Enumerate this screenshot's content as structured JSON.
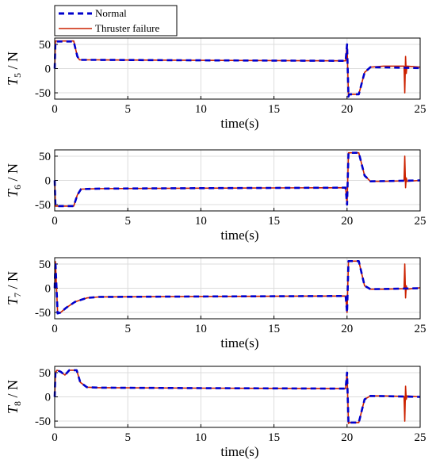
{
  "chart_data": {
    "type": "line",
    "legend": {
      "placement": "top-left",
      "entries": [
        {
          "name": "Normal",
          "color": "#0000CC",
          "style": "dashed"
        },
        {
          "name": "Thruster failure",
          "color": "#CC2200",
          "style": "solid"
        }
      ]
    },
    "grid": true,
    "charts": [
      {
        "ylabel_main": "T",
        "ylabel_sub": "5",
        "ylabel_unit": " / N",
        "xlabel": "time(s)",
        "xlim": [
          0,
          25
        ],
        "ylim": [
          -63,
          63
        ],
        "xticks": [
          "0",
          "5",
          "10",
          "15",
          "20",
          "25"
        ],
        "yticks": [
          "50",
          "0",
          "-50"
        ],
        "series": [
          {
            "name": "Normal",
            "x": [
              0,
              0.05,
              0.15,
              1.3,
              1.55,
              1.7,
              3,
              10,
              19.9,
              20.0,
              20.1,
              20.15,
              20.8,
              21.2,
              21.6,
              23.5,
              25
            ],
            "y": [
              0,
              56,
              56,
              56,
              25,
              18,
              18,
              17,
              16,
              50,
              -58,
              -53,
              -53,
              -8,
              3,
              2,
              1
            ]
          },
          {
            "name": "Thruster failure",
            "x": [
              0,
              0.05,
              0.15,
              1.3,
              1.55,
              1.7,
              3,
              10,
              19.9,
              20.0,
              20.1,
              20.15,
              20.8,
              21.2,
              21.6,
              22.5,
              23.9,
              23.95,
              24.0,
              24.05,
              24.1,
              25
            ],
            "y": [
              0,
              57,
              57,
              57,
              25,
              18,
              18,
              17,
              16,
              50,
              -58,
              -53,
              -53,
              -8,
              3,
              5,
              5,
              -50,
              25,
              -10,
              5,
              3
            ]
          }
        ]
      },
      {
        "ylabel_main": "T",
        "ylabel_sub": "6",
        "ylabel_unit": " / N",
        "xlabel": "time(s)",
        "xlim": [
          0,
          25
        ],
        "ylim": [
          -63,
          63
        ],
        "xticks": [
          "0",
          "5",
          "10",
          "15",
          "20",
          "25"
        ],
        "yticks": [
          "50",
          "0",
          "-50"
        ],
        "series": [
          {
            "name": "Normal",
            "x": [
              0,
              0.05,
              0.15,
              1.3,
              1.55,
              1.8,
              3,
              10,
              19.9,
              20.0,
              20.1,
              20.15,
              20.8,
              21.2,
              21.6,
              23.5,
              25
            ],
            "y": [
              0,
              -53,
              -53,
              -53,
              -30,
              -18,
              -17,
              -16,
              -15,
              -50,
              57,
              57,
              57,
              10,
              -2,
              -1,
              0
            ]
          },
          {
            "name": "Thruster failure",
            "x": [
              0,
              0.05,
              0.15,
              1.3,
              1.55,
              1.8,
              3,
              10,
              19.9,
              20.0,
              20.1,
              20.15,
              20.8,
              21.2,
              21.6,
              22.5,
              23.9,
              23.95,
              24.0,
              24.05,
              24.1,
              25
            ],
            "y": [
              0,
              -53,
              -53,
              -53,
              -30,
              -18,
              -17,
              -16,
              -15,
              -50,
              57,
              57,
              57,
              10,
              -2,
              -2,
              -1,
              50,
              -15,
              5,
              -2,
              0
            ]
          }
        ]
      },
      {
        "ylabel_main": "T",
        "ylabel_sub": "7",
        "ylabel_unit": " / N",
        "xlabel": "time(s)",
        "xlim": [
          0,
          25
        ],
        "ylim": [
          -63,
          63
        ],
        "xticks": [
          "0",
          "5",
          "10",
          "15",
          "20",
          "25"
        ],
        "yticks": [
          "50",
          "0",
          "-50"
        ],
        "series": [
          {
            "name": "Normal",
            "x": [
              0,
              0.05,
              0.2,
              0.4,
              0.8,
              1.4,
              2.2,
              3,
              10,
              19.9,
              20.0,
              20.1,
              20.15,
              20.8,
              21.2,
              21.6,
              23.5,
              25
            ],
            "y": [
              0,
              55,
              -52,
              -50,
              -40,
              -28,
              -20,
              -18,
              -17,
              -16,
              -50,
              56,
              56,
              56,
              5,
              -2,
              -1,
              0
            ]
          },
          {
            "name": "Thruster failure",
            "x": [
              0,
              0.05,
              0.2,
              0.4,
              0.8,
              1.4,
              2.2,
              3,
              10,
              19.9,
              20.0,
              20.1,
              20.15,
              20.8,
              21.2,
              21.6,
              22.5,
              23.9,
              23.95,
              24.0,
              24.05,
              24.1,
              25
            ],
            "y": [
              0,
              55,
              -52,
              -50,
              -40,
              -28,
              -20,
              -18,
              -17,
              -16,
              -50,
              56,
              56,
              56,
              5,
              -2,
              -2,
              -1,
              50,
              -20,
              5,
              -2,
              1
            ]
          }
        ]
      },
      {
        "ylabel_main": "T",
        "ylabel_sub": "8",
        "ylabel_unit": " / N",
        "xlabel": "time(s)",
        "xlim": [
          0,
          25
        ],
        "ylim": [
          -63,
          63
        ],
        "xticks": [
          "0",
          "5",
          "10",
          "15",
          "20",
          "25"
        ],
        "yticks": [
          "50",
          "0",
          "-50"
        ],
        "series": [
          {
            "name": "Normal",
            "x": [
              0,
              0.05,
              0.15,
              0.4,
              0.7,
              1.0,
              1.5,
              1.75,
              2.2,
              3,
              10,
              19.9,
              20.0,
              20.1,
              20.15,
              20.8,
              21.2,
              21.6,
              23.5,
              25
            ],
            "y": [
              0,
              50,
              55,
              52,
              45,
              55,
              55,
              30,
              20,
              19,
              18,
              17,
              50,
              -55,
              -53,
              -53,
              -5,
              2,
              1,
              0
            ]
          },
          {
            "name": "Thruster failure",
            "x": [
              0,
              0.05,
              0.15,
              0.4,
              0.7,
              1.0,
              1.5,
              1.75,
              2.2,
              3,
              10,
              19.9,
              20.0,
              20.1,
              20.15,
              20.8,
              21.2,
              21.6,
              22.5,
              23.9,
              23.95,
              24.0,
              24.05,
              24.1,
              25
            ],
            "y": [
              0,
              50,
              55,
              52,
              45,
              55,
              55,
              30,
              20,
              19,
              18,
              17,
              50,
              -55,
              -53,
              -53,
              -5,
              2,
              2,
              1,
              -50,
              22,
              -5,
              2,
              0
            ]
          }
        ]
      }
    ]
  }
}
